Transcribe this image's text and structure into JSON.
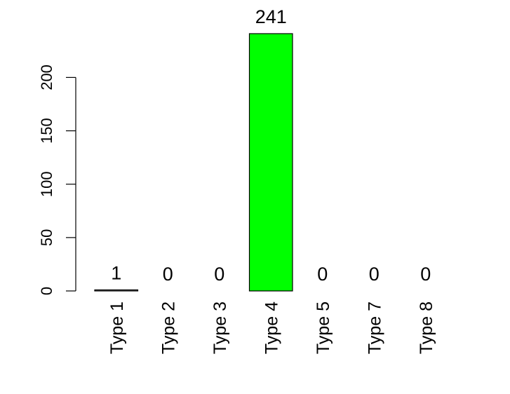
{
  "chart_data": {
    "type": "bar",
    "categories": [
      "Type 1",
      "Type 2",
      "Type 3",
      "Type 4",
      "Type 5",
      "Type 7",
      "Type 8"
    ],
    "values": [
      1,
      0,
      0,
      241,
      0,
      0,
      0
    ],
    "data_labels": [
      "1",
      "0",
      "0",
      "241",
      "0",
      "0",
      "0"
    ],
    "bar_colors": [
      "#808080",
      "#808080",
      "#808080",
      "#00FF00",
      "#808080",
      "#808080",
      "#808080"
    ],
    "title": "",
    "xlabel": "",
    "ylabel": "",
    "ylim": [
      0,
      241
    ],
    "yticks": [
      0,
      50,
      100,
      150,
      200
    ],
    "ytick_labels": [
      "0",
      "50",
      "100",
      "150",
      "200"
    ],
    "grid": false,
    "legend": "none"
  }
}
